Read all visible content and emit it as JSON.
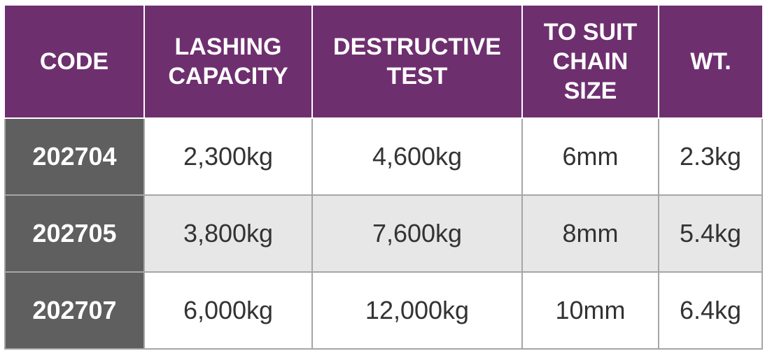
{
  "table": {
    "header": [
      [
        "CODE"
      ],
      [
        "LASHING",
        "CAPACITY"
      ],
      [
        "DESTRUCTIVE",
        "TEST"
      ],
      [
        "TO SUIT",
        "CHAIN",
        "SIZE"
      ],
      [
        "WT."
      ]
    ],
    "rows": [
      [
        "202704",
        "2,300kg",
        "4,600kg",
        "6mm",
        "2.3kg"
      ],
      [
        "202705",
        "3,800kg",
        "7,600kg",
        "8mm",
        "5.4kg"
      ],
      [
        "202707",
        "6,000kg",
        "12,000kg",
        "10mm",
        "6.4kg"
      ]
    ]
  }
}
